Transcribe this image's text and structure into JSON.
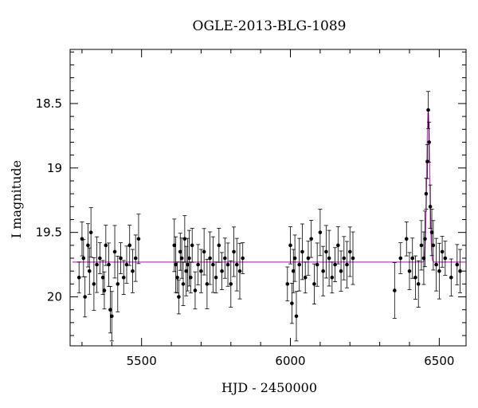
{
  "chart_data": {
    "type": "scatter",
    "title": "OGLE-2013-BLG-1089",
    "xlabel": "HJD - 2450000",
    "ylabel": "I magnitude",
    "xlim": [
      5260,
      6590
    ],
    "ylim": [
      20.38,
      18.08
    ],
    "y_inverted": true,
    "xticks": [
      5500,
      6000,
      6500
    ],
    "yticks": [
      18.5,
      19,
      19.5,
      20
    ],
    "xtick_labels": [
      "5500",
      "6000",
      "6500"
    ],
    "ytick_labels": [
      "18.5",
      "19",
      "19.5",
      "20"
    ],
    "baseline_mag": 19.73,
    "model_color": "#cc33cc",
    "point_color": "#000000",
    "model": {
      "type": "microlensing-peak",
      "t0": 6463,
      "peak_mag": 18.55,
      "width_days": 7
    },
    "series": [
      {
        "x": [
          5290,
          5300,
          5305,
          5310,
          5320,
          5325,
          5330,
          5340,
          5350,
          5360,
          5370,
          5375,
          5380,
          5390,
          5395,
          5400,
          5410,
          5420,
          5430,
          5440,
          5450,
          5460,
          5470,
          5480,
          5490,
          5610,
          5615,
          5620,
          5625,
          5630,
          5635,
          5640,
          5645,
          5650,
          5655,
          5660,
          5665,
          5670,
          5680,
          5690,
          5700,
          5710,
          5720,
          5730,
          5740,
          5750,
          5760,
          5770,
          5780,
          5790,
          5800,
          5810,
          5820,
          5830,
          5840,
          5990,
          6000,
          6005,
          6010,
          6015,
          6020,
          6030,
          6040,
          6050,
          6060,
          6070,
          6080,
          6090,
          6100,
          6110,
          6120,
          6130,
          6140,
          6150,
          6160,
          6170,
          6180,
          6190,
          6200,
          6210,
          6350,
          6370,
          6390,
          6400,
          6410,
          6420,
          6430,
          6440,
          6448,
          6452,
          6456,
          6460,
          6463,
          6466,
          6470,
          6475,
          6480,
          6490,
          6500,
          6510,
          6520,
          6540,
          6560,
          6570
        ],
        "y": [
          19.85,
          19.55,
          19.7,
          20.0,
          19.6,
          19.8,
          19.5,
          19.9,
          19.75,
          19.7,
          19.85,
          19.95,
          19.6,
          19.75,
          20.1,
          20.15,
          19.65,
          19.9,
          19.7,
          19.85,
          19.75,
          19.6,
          19.8,
          19.7,
          19.55,
          19.6,
          19.75,
          19.85,
          20.0,
          19.65,
          19.7,
          19.9,
          19.55,
          19.8,
          19.75,
          19.7,
          19.85,
          19.6,
          19.95,
          19.75,
          19.8,
          19.65,
          19.9,
          19.7,
          19.75,
          19.85,
          19.6,
          19.8,
          19.7,
          19.75,
          19.9,
          19.65,
          19.75,
          19.8,
          19.7,
          19.9,
          19.6,
          20.05,
          19.8,
          19.7,
          20.15,
          19.75,
          19.65,
          19.85,
          19.7,
          19.55,
          19.9,
          19.75,
          19.5,
          19.8,
          19.65,
          19.7,
          19.85,
          19.75,
          19.6,
          19.8,
          19.7,
          19.75,
          19.65,
          19.7,
          19.95,
          19.7,
          19.55,
          19.8,
          19.7,
          19.85,
          19.9,
          19.6,
          19.7,
          19.55,
          19.2,
          18.95,
          18.55,
          18.8,
          19.3,
          19.5,
          19.6,
          19.75,
          19.8,
          19.65,
          19.7,
          19.85,
          19.75,
          19.8
        ]
      }
    ]
  }
}
